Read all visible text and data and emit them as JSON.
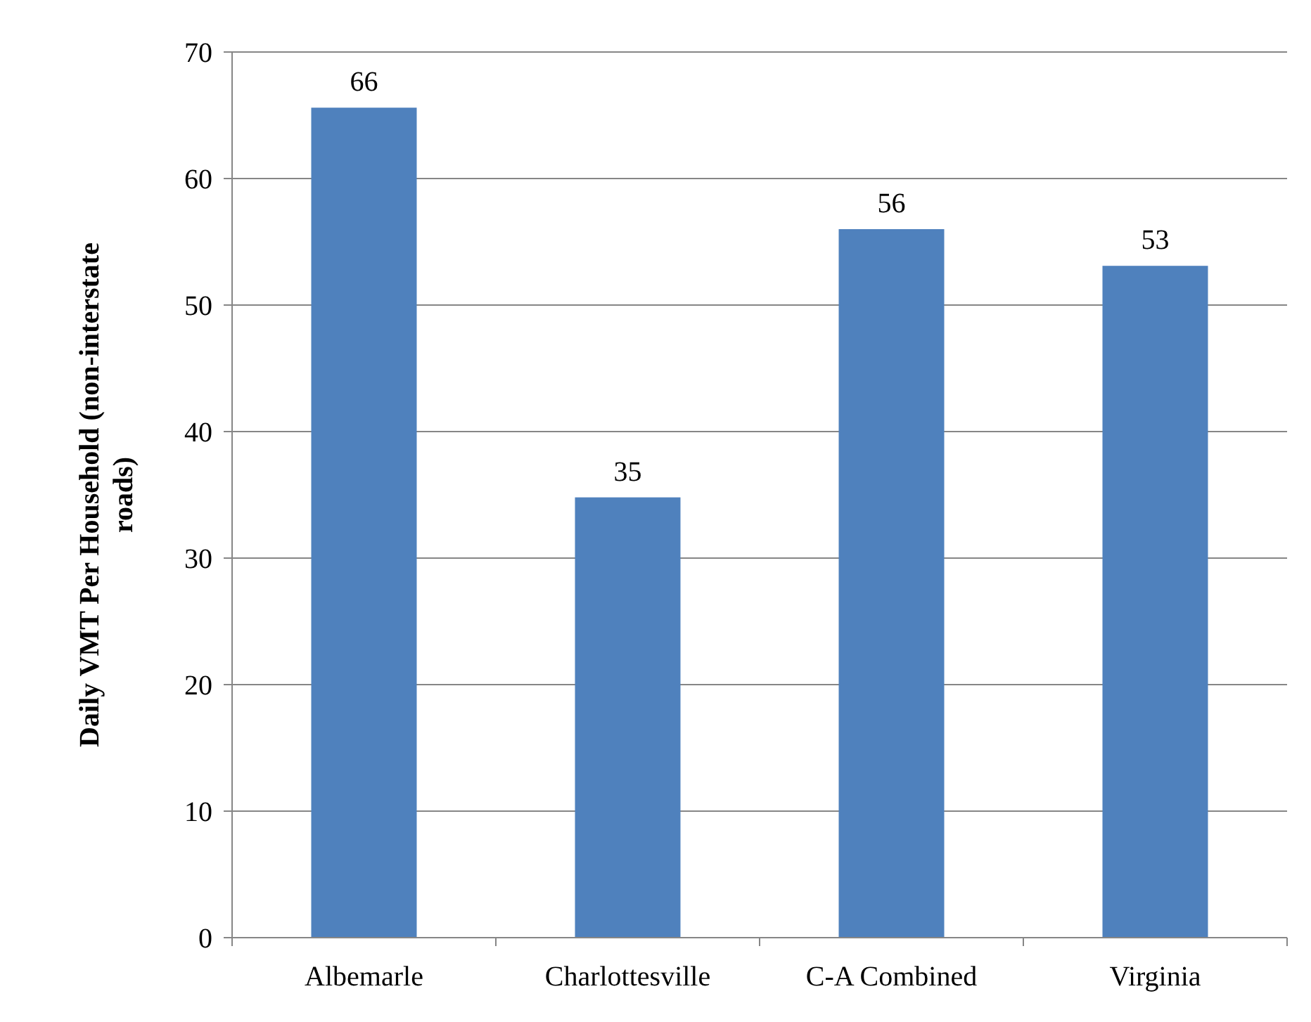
{
  "chart_data": {
    "type": "bar",
    "ylabel": "Daily VMT Per Household (non-interstate roads)",
    "categories": [
      "Albemarle",
      "Charlottesville",
      "C-A Combined",
      "Virginia"
    ],
    "values": [
      65.6,
      34.8,
      56,
      53.1
    ],
    "value_labels": [
      "66",
      "35",
      "56",
      "53"
    ],
    "color": "#4f81bd",
    "ylim": [
      0,
      70
    ],
    "yticks": [
      0,
      10,
      20,
      30,
      40,
      50,
      60,
      70
    ],
    "grid": "y"
  }
}
